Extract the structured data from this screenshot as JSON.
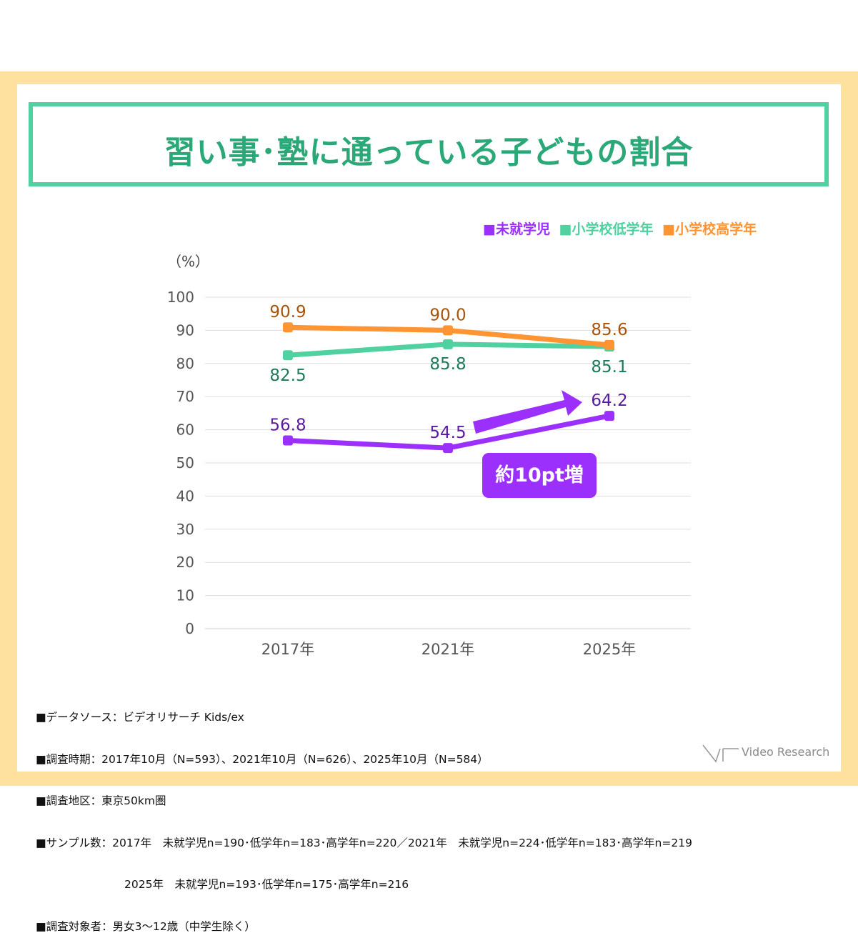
{
  "title": "習い事･塾に通っている子どもの割合",
  "legend": [
    {
      "label": "■未就学児",
      "color": "#9b2ffc"
    },
    {
      "label": "■小学校低学年",
      "color": "#4fd1a0"
    },
    {
      "label": "■小学校高学年",
      "color": "#ff9433"
    }
  ],
  "callout": "約10pt増",
  "chart_data": {
    "type": "line",
    "unit_label": "（%）",
    "categories": [
      "2017年",
      "2021年",
      "2025年"
    ],
    "ylim": [
      0,
      100
    ],
    "yticks": [
      0,
      10,
      20,
      30,
      40,
      50,
      60,
      70,
      80,
      90,
      100
    ],
    "grid": true,
    "legend_position": "top-right",
    "series": [
      {
        "name": "未就学児",
        "values": [
          56.8,
          54.5,
          64.2
        ],
        "labels": [
          "56.8",
          "54.5",
          "64.2"
        ],
        "color": "#9b2ffc",
        "label_color": "#5a1aa0"
      },
      {
        "name": "小学校低学年",
        "values": [
          82.5,
          85.8,
          85.1
        ],
        "labels": [
          "82.5",
          "85.8",
          "85.1"
        ],
        "color": "#4fd1a0",
        "label_color": "#1d7a58"
      },
      {
        "name": "小学校高学年",
        "values": [
          90.9,
          90.0,
          85.6
        ],
        "labels": [
          "90.9",
          "90.0",
          "85.6"
        ],
        "color": "#ff9433",
        "label_color": "#a8540a"
      }
    ]
  },
  "notes": [
    "■データソース：ビデオリサーチ Kids/ex",
    "■調査時期：2017年10月（N=593）、2021年10月（N=626）、2025年10月（N=584）",
    "■調査地区：東京50km圏",
    "■サンプル数：2017年　未就学児n=190･低学年n=183･高学年n=220／2021年　未就学児n=224･低学年n=183･高学年n=219",
    "　　　　　　　　2025年　未就学児n=193･低学年n=175･高学年n=216",
    "■調査対象者：男女3～12歳（中学生除く）"
  ],
  "logo_text": "Video Research"
}
